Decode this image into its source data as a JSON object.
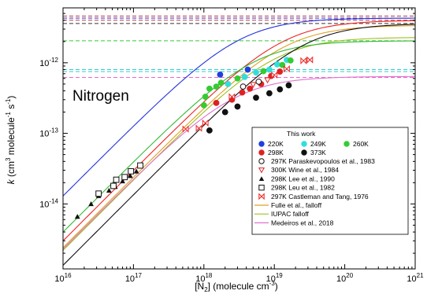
{
  "chart_data": {
    "type": "scatter",
    "title": "",
    "annotation": "Nitrogen",
    "xlabel": {
      "prefix": "[N",
      "sub": "2",
      "middle": "] (molecule cm",
      "sup": "-3",
      "suffix": ")"
    },
    "ylabel": {
      "k": "k",
      "open": " (cm",
      "sup3": "3",
      "mid": " molecule",
      "supm1": "-1",
      "s": " s",
      "supm1b": "-1",
      "close": ")"
    },
    "x_scale": "log",
    "y_scale": "log",
    "xlim": [
      1e+16,
      1e+21
    ],
    "ylim": [
      1.2e-15,
      6e-12
    ],
    "x_ticks": [
      {
        "value": 1e+16,
        "base": "10",
        "exp": "16"
      },
      {
        "value": 1e+17,
        "base": "10",
        "exp": "17"
      },
      {
        "value": 1e+18,
        "base": "10",
        "exp": "18"
      },
      {
        "value": 1e+19,
        "base": "10",
        "exp": "19"
      },
      {
        "value": 1e+20,
        "base": "10",
        "exp": "20"
      },
      {
        "value": 1e+21,
        "base": "10",
        "exp": "21"
      }
    ],
    "y_ticks": [
      {
        "value": 1e-14,
        "base": "10",
        "exp": "-14"
      },
      {
        "value": 1e-13,
        "base": "10",
        "exp": "-13"
      },
      {
        "value": 1e-12,
        "base": "10",
        "exp": "-12"
      }
    ],
    "grid": false,
    "legend_title": "This work",
    "legend_placement": "bottom-right",
    "high_pressure_limits": [
      {
        "value": 4.6e-12,
        "color": "#cc3333"
      },
      {
        "value": 4.3e-12,
        "color": "#2222cc"
      },
      {
        "value": 4e-12,
        "color": "#cc3333"
      },
      {
        "value": 3.6e-12,
        "color": "#333333"
      },
      {
        "value": 2.05e-12,
        "color": "#33cc33"
      },
      {
        "value": 8e-13,
        "color": "#33cccc"
      },
      {
        "value": 7.5e-13,
        "color": "#33cccc"
      },
      {
        "value": 6.2e-13,
        "color": "#ee66cc"
      }
    ],
    "series": [
      {
        "name": "220K",
        "marker": "circle",
        "color": "#1f3fdd",
        "points": [
          [
            1.7e+18,
            6.8e-13
          ],
          [
            4.2e+18,
            8e-13
          ]
        ]
      },
      {
        "name": "249K",
        "marker": "circle",
        "color": "#33dddd",
        "points": [
          [
            2.2e+18,
            5e-13
          ],
          [
            3.8e+18,
            6.3e-13
          ],
          [
            5.5e+18,
            7.3e-13
          ],
          [
            8.5e+18,
            8e-13
          ],
          [
            1.1e+19,
            9.5e-13
          ],
          [
            1.5e+19,
            1.1e-12
          ]
        ]
      },
      {
        "name": "260K",
        "marker": "circle",
        "color": "#33cc33",
        "points": [
          [
            1e+18,
            2.5e-13
          ],
          [
            1.05e+18,
            3.3e-13
          ],
          [
            1.2e+18,
            4.3e-13
          ],
          [
            1.5e+18,
            4.6e-13
          ],
          [
            1.75e+18,
            5.2e-13
          ],
          [
            3e+18,
            6e-13
          ],
          [
            7e+18,
            7.6e-13
          ],
          [
            1.3e+19,
            9.3e-13
          ],
          [
            1.7e+19,
            1.08e-12
          ]
        ]
      },
      {
        "name": "298K",
        "marker": "circle",
        "color": "#dd2222",
        "points": [
          [
            1.5e+18,
            2.7e-13
          ],
          [
            2.5e+18,
            3e-13
          ],
          [
            3.5e+18,
            3.8e-13
          ],
          [
            4.5e+18,
            4.3e-13
          ],
          [
            6.5e+18,
            5e-13
          ],
          [
            9e+18,
            6.5e-13
          ],
          [
            1.2e+19,
            7.5e-13
          ]
        ]
      },
      {
        "name": "373K",
        "marker": "circle",
        "color": "#111111",
        "points": [
          [
            1.2e+18,
            1.1e-13
          ],
          [
            2e+18,
            2e-13
          ],
          [
            3e+18,
            2.4e-13
          ],
          [
            5.5e+18,
            3.2e-13
          ],
          [
            8.5e+18,
            3.7e-13
          ],
          [
            1.2e+19,
            4.2e-13
          ],
          [
            1.6e+19,
            4.8e-13
          ]
        ]
      },
      {
        "name": "297K Paraskevopoulos et al., 1983",
        "marker": "open-circle",
        "color": "#111111",
        "points": [
          [
            3.6e+18,
            4.6e-13
          ],
          [
            6e+18,
            5.4e-13
          ]
        ]
      },
      {
        "name": "300K Wine et al., 1984",
        "marker": "open-triangle-down",
        "color": "#dd2222",
        "points": [
          [
            5e+18,
            4.9e-13
          ],
          [
            8e+18,
            5.7e-13
          ]
        ]
      },
      {
        "name": "298K Lee et al., 1990",
        "marker": "triangle-up",
        "color": "#111111",
        "points": [
          [
            1.6e+16,
            6.6e-15
          ],
          [
            2.5e+16,
            1e-14
          ],
          [
            3.2e+16,
            1.3e-14
          ],
          [
            4.5e+16,
            1.55e-14
          ],
          [
            5.5e+16,
            1.75e-14
          ],
          [
            7e+16,
            2.1e-14
          ],
          [
            9e+16,
            2.5e-14
          ],
          [
            1.1e+17,
            2.9e-14
          ]
        ]
      },
      {
        "name": "298K Leu et al., 1982",
        "marker": "open-square",
        "color": "#111111",
        "points": [
          [
            3.2e+16,
            1.4e-14
          ],
          [
            5.2e+16,
            1.8e-14
          ],
          [
            5.7e+16,
            2.2e-14
          ],
          [
            7.5e+16,
            2.4e-14
          ],
          [
            9.2e+16,
            2.9e-14
          ],
          [
            1.25e+17,
            3.5e-14
          ]
        ]
      },
      {
        "name": "297K Castleman and Tang, 1976",
        "marker": "bowtie",
        "color": "#ee2222",
        "points": [
          [
            5.5e+17,
            1.15e-13
          ],
          [
            8.5e+17,
            1.18e-13
          ],
          [
            1.05e+18,
            1.4e-13
          ],
          [
            2.5e+18,
            3.3e-13
          ],
          [
            1e+19,
            6.7e-13
          ],
          [
            1.5e+19,
            8.2e-13
          ],
          [
            2.6e+19,
            1.07e-12
          ],
          [
            3.2e+19,
            1.1e-12
          ]
        ]
      }
    ],
    "curves": [
      {
        "name": "Fulle et al., falloff",
        "color": "#e0a020",
        "k0": 2.4e-31,
        "kinf": 3.4e-12
      },
      {
        "name": "IUPAC falloff",
        "color": "#a0c020",
        "k0": 2.2e-31,
        "kinf": 2.3e-12
      },
      {
        "name": "Medeiros et al., 2018",
        "color": "#e070d0",
        "k0": 2.3e-31,
        "kinf": 6.4e-13
      },
      {
        "name": "",
        "color": "#2233dd",
        "k0": 1.3e-30,
        "kinf": 4.3e-12
      },
      {
        "name": "",
        "color": "#ee2222",
        "k0": 3e-31,
        "kinf": 4e-12
      },
      {
        "name": "",
        "color": "#33bb33",
        "k0": 4e-31,
        "kinf": 2.05e-12
      },
      {
        "name": "",
        "color": "#111111",
        "k0": 1.35e-31,
        "kinf": 3.6e-12
      }
    ],
    "legend": {
      "title": "This work",
      "rows": [
        [
          {
            "label": "220K",
            "marker": "circle",
            "color": "#1f3fdd"
          },
          {
            "label": "249K",
            "marker": "circle",
            "color": "#33dddd"
          },
          {
            "label": "260K",
            "marker": "circle",
            "color": "#33cc33"
          }
        ],
        [
          {
            "label": "298K",
            "marker": "circle",
            "color": "#dd2222"
          },
          {
            "label": "373K",
            "marker": "circle",
            "color": "#111111"
          }
        ]
      ],
      "entries": [
        {
          "label": "297K Paraskevopoulos et al., 1983",
          "marker": "open-circle",
          "color": "#111111"
        },
        {
          "label": "300K Wine et al., 1984",
          "marker": "open-triangle-down",
          "color": "#dd2222"
        },
        {
          "label": "298K Lee et al., 1990",
          "marker": "triangle-up",
          "color": "#111111"
        },
        {
          "label": "298K Leu et al., 1982",
          "marker": "open-square",
          "color": "#111111"
        },
        {
          "label": "297K Castleman and Tang, 1976",
          "marker": "bowtie",
          "color": "#ee2222"
        },
        {
          "label": "Fulle et al., falloff",
          "marker": "line",
          "color": "#e0a020"
        },
        {
          "label": "IUPAC falloff",
          "marker": "line",
          "color": "#a0c020"
        },
        {
          "label": "Medeiros et al., 2018",
          "marker": "line",
          "color": "#e070d0"
        }
      ]
    }
  }
}
